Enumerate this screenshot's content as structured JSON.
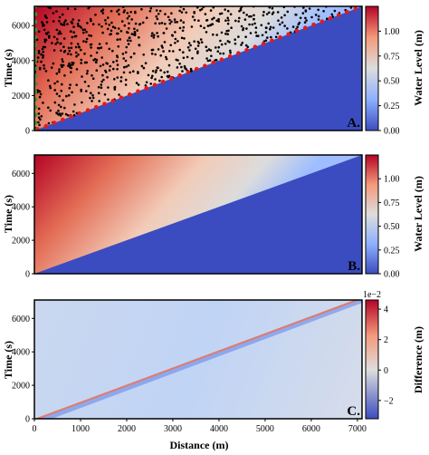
{
  "chart_data": [
    {
      "type": "heatmap",
      "panel_label": "A.",
      "ylabel": "Time (s)",
      "xlim": [
        0,
        7100
      ],
      "ylim": [
        0,
        7100
      ],
      "yticks": [
        "0",
        "2000",
        "4000",
        "6000"
      ],
      "colorbar": {
        "label": "Water Level (m)",
        "range": [
          0.0,
          1.25
        ],
        "ticks": [
          "0.00",
          "0.25",
          "0.50",
          "0.75",
          "1.00"
        ],
        "colors": [
          "#3b4cc0",
          "#dddddd",
          "#b40426"
        ]
      },
      "overlays": {
        "interior_points": "black dots scattered above the wave front",
        "front_points": "red dots along the wave front",
        "boundary_points": "green dots along x = 0"
      }
    },
    {
      "type": "heatmap",
      "panel_label": "B.",
      "ylabel": "Time (s)",
      "xlim": [
        0,
        7100
      ],
      "ylim": [
        0,
        7100
      ],
      "yticks": [
        "0",
        "2000",
        "4000",
        "6000"
      ],
      "colorbar": {
        "label": "Water Level (m)",
        "range": [
          0.0,
          1.25
        ],
        "ticks": [
          "0.00",
          "0.25",
          "0.50",
          "0.75",
          "1.00"
        ],
        "colors": [
          "#3b4cc0",
          "#dddddd",
          "#b40426"
        ]
      }
    },
    {
      "type": "heatmap",
      "panel_label": "C.",
      "xlabel": "Distance (m)",
      "ylabel": "Time (s)",
      "xlim": [
        0,
        7100
      ],
      "ylim": [
        0,
        7100
      ],
      "xticks": [
        "0",
        "1000",
        "2000",
        "3000",
        "4000",
        "5000",
        "6000",
        "7000"
      ],
      "yticks": [
        "0",
        "2000",
        "4000",
        "6000"
      ],
      "colorbar": {
        "label": "Difference (m)",
        "scale_label": "1e−2",
        "range": [
          -3.2,
          4.6
        ],
        "ticks": [
          "−2",
          "0",
          "2",
          "4"
        ],
        "colors": [
          "#3b4cc0",
          "#dddddd",
          "#b40426"
        ]
      }
    }
  ]
}
